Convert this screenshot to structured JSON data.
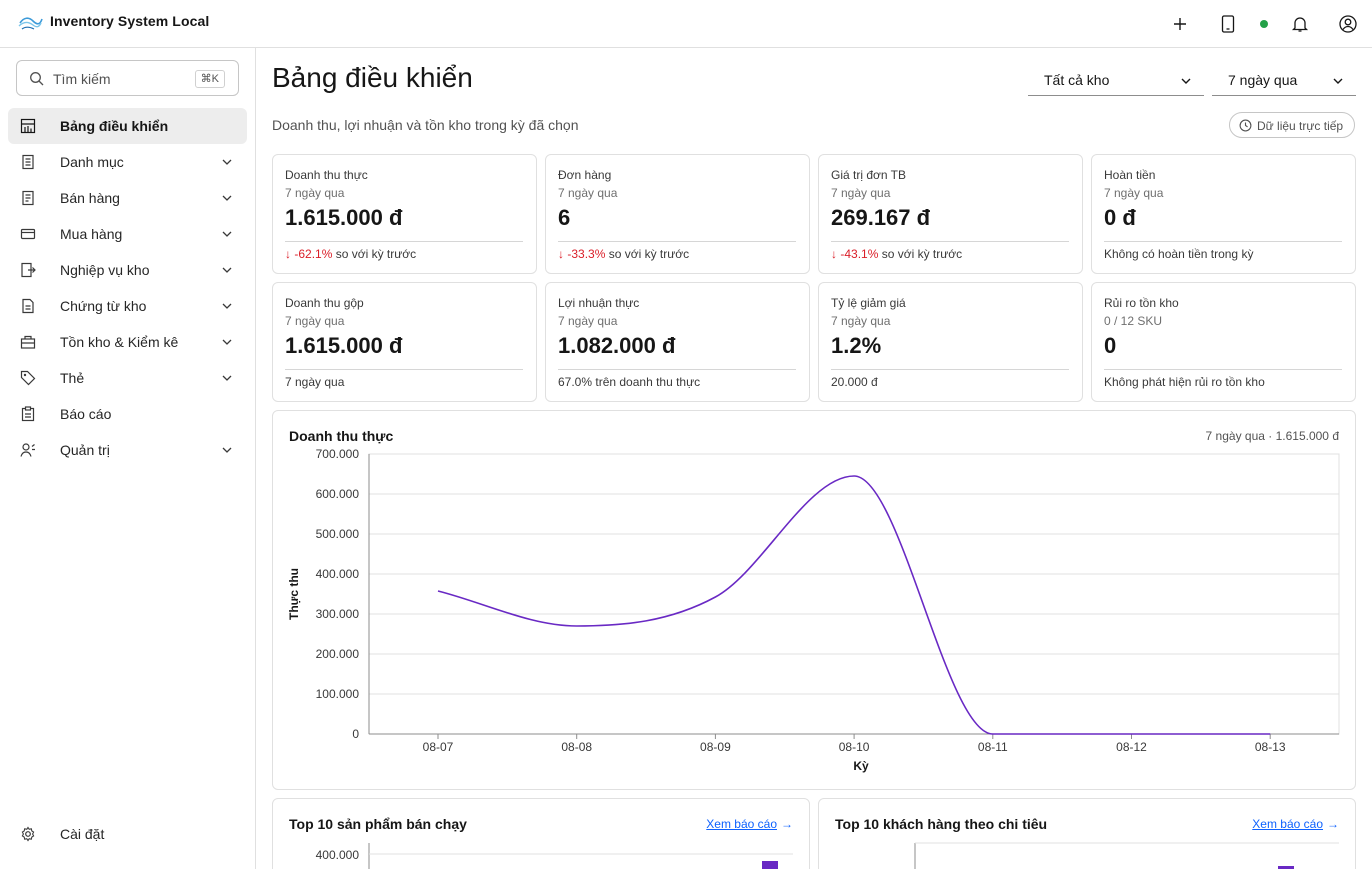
{
  "header": {
    "app_title": "Inventory System Local",
    "actions": [
      "plus-icon",
      "tablet-icon",
      "bell-icon",
      "user-icon"
    ],
    "status_color": "#24a148"
  },
  "sidebar": {
    "search": {
      "placeholder": "Tìm kiếm",
      "shortcut": "⌘K"
    },
    "items": [
      {
        "label": "Bảng điều khiển",
        "icon": "dashboard-icon",
        "active": true,
        "expandable": false
      },
      {
        "label": "Danh mục",
        "icon": "catalog-icon",
        "expandable": true
      },
      {
        "label": "Bán hàng",
        "icon": "sales-icon",
        "expandable": true
      },
      {
        "label": "Mua hàng",
        "icon": "card-icon",
        "expandable": true
      },
      {
        "label": "Nghiệp vụ kho",
        "icon": "warehouse-ops-icon",
        "expandable": true
      },
      {
        "label": "Chứng từ kho",
        "icon": "document-icon",
        "expandable": true
      },
      {
        "label": "Tồn kho & Kiểm kê",
        "icon": "inventory-icon",
        "expandable": true
      },
      {
        "label": "Thẻ",
        "icon": "tag-icon",
        "expandable": true
      },
      {
        "label": "Báo cáo",
        "icon": "report-icon",
        "expandable": false
      },
      {
        "label": "Quản trị",
        "icon": "admin-icon",
        "expandable": true
      }
    ],
    "settings_label": "Cài đặt"
  },
  "main": {
    "title": "Bảng điều khiển",
    "subtitle": "Doanh thu, lợi nhuận và tồn kho trong kỳ đã chọn",
    "warehouse_select": "Tất cả kho",
    "period_select": "7 ngày qua",
    "live_label": "Dữ liệu trực tiếp",
    "kpis": [
      {
        "title": "Doanh thu thực",
        "period": "7 ngày qua",
        "value": "1.615.000 đ",
        "delta": "-62.1%",
        "delta_text": "so với kỳ trước"
      },
      {
        "title": "Đơn hàng",
        "period": "7 ngày qua",
        "value": "6",
        "delta": "-33.3%",
        "delta_text": "so với kỳ trước"
      },
      {
        "title": "Giá trị đơn TB",
        "period": "7 ngày qua",
        "value": "269.167 đ",
        "delta": "-43.1%",
        "delta_text": "so với kỳ trước"
      },
      {
        "title": "Hoàn tiền",
        "period": "7 ngày qua",
        "value": "0 đ",
        "foot": "Không có hoàn tiền trong kỳ"
      },
      {
        "title": "Doanh thu gộp",
        "period": "7 ngày qua",
        "value": "1.615.000 đ",
        "foot": "7 ngày qua"
      },
      {
        "title": "Lợi nhuận thực",
        "period": "7 ngày qua",
        "value": "1.082.000 đ",
        "foot": "67.0% trên doanh thu thực"
      },
      {
        "title": "Tỷ lệ giảm giá",
        "period": "7 ngày qua",
        "value": "1.2%",
        "foot": "20.000 đ"
      },
      {
        "title": "Rủi ro tồn kho",
        "period": "0 / 12 SKU",
        "value": "0",
        "foot": "Không phát hiện rủi ro tồn kho"
      }
    ],
    "revenue_card": {
      "title": "Doanh thu thực",
      "meta": "7 ngày qua · 1.615.000 đ"
    },
    "top_products_card": {
      "title": "Top 10 sản phẩm bán chạy",
      "link": "Xem báo cáo",
      "visible_tick": "400.000"
    },
    "top_customers_card": {
      "title": "Top 10 khách hàng theo chi tiêu",
      "link": "Xem báo cáo"
    }
  },
  "colors": {
    "accent": "#6929c4",
    "danger": "#da1e28",
    "link": "#0f62fe"
  },
  "chart_data": {
    "type": "line",
    "title": "Doanh thu thực",
    "xlabel": "Kỳ",
    "ylabel": "Thực thu",
    "categories": [
      "08-07",
      "08-08",
      "08-09",
      "08-10",
      "08-11",
      "08-12",
      "08-13"
    ],
    "values": [
      357500,
      270000,
      342500,
      645000,
      0,
      0,
      0
    ],
    "ylim": [
      0,
      700000
    ],
    "yticks": [
      "0",
      "100.000",
      "200.000",
      "300.000",
      "400.000",
      "500.000",
      "600.000",
      "700.000"
    ],
    "grid": true,
    "color": "#6929c4",
    "curve": "smooth"
  }
}
